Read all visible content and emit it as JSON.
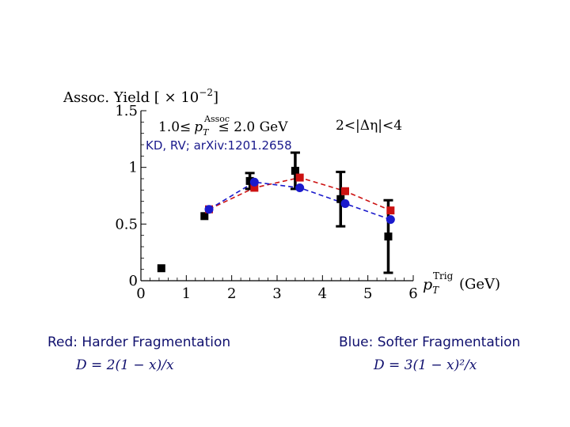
{
  "chart_data": {
    "type": "scatter",
    "ylabel_prefix": "Assoc. Yield [ × 10",
    "ylabel_exp": "−2",
    "ylabel_suffix": "]",
    "xlabel_main": "p",
    "xlabel_sub": "T",
    "xlabel_sup": "Trig",
    "xlabel_unit": "(GeV)",
    "xlim": [
      0,
      6
    ],
    "ylim": [
      0,
      1.5
    ],
    "x_ticks": [
      "0",
      "1",
      "2",
      "3",
      "4",
      "5",
      "6"
    ],
    "y_ticks": [
      "0",
      "0.5",
      "1",
      "1.5"
    ],
    "annotation_pt_left": "1.0≤",
    "annotation_pt_var": "p",
    "annotation_pt_sub": "T",
    "annotation_pt_sup": "Assoc",
    "annotation_pt_right": "≤ 2.0 GeV",
    "annotation_eta": "2<|Δη|<4",
    "annotation_ref": "KD, RV; arXiv:1201.2658",
    "colors": {
      "data": "#000000",
      "red": "#cc1111",
      "blue": "#1a1acc",
      "caption": "#10106e"
    },
    "series": [
      {
        "marker": "square",
        "x": [
          0.45,
          1.4,
          2.4,
          3.4,
          4.4,
          5.45
        ],
        "y": [
          0.11,
          0.57,
          0.88,
          0.97,
          0.72,
          0.39
        ],
        "err": [
          0.0,
          0.0,
          0.07,
          0.16,
          0.24,
          0.32
        ]
      },
      {
        "marker": "square",
        "x": [
          1.5,
          2.5,
          3.5,
          4.5,
          5.5
        ],
        "y": [
          0.63,
          0.82,
          0.91,
          0.79,
          0.62
        ]
      },
      {
        "marker": "circle",
        "x": [
          1.5,
          2.5,
          3.5,
          4.5,
          5.5
        ],
        "y": [
          0.63,
          0.87,
          0.82,
          0.68,
          0.54
        ]
      }
    ]
  },
  "captions": {
    "red_title": "Red: Harder Fragmentation",
    "red_formula": "D = 2(1 − x)/x",
    "blue_title": "Blue: Softer Fragmentation",
    "blue_formula": "D = 3(1 − x)²/x"
  }
}
